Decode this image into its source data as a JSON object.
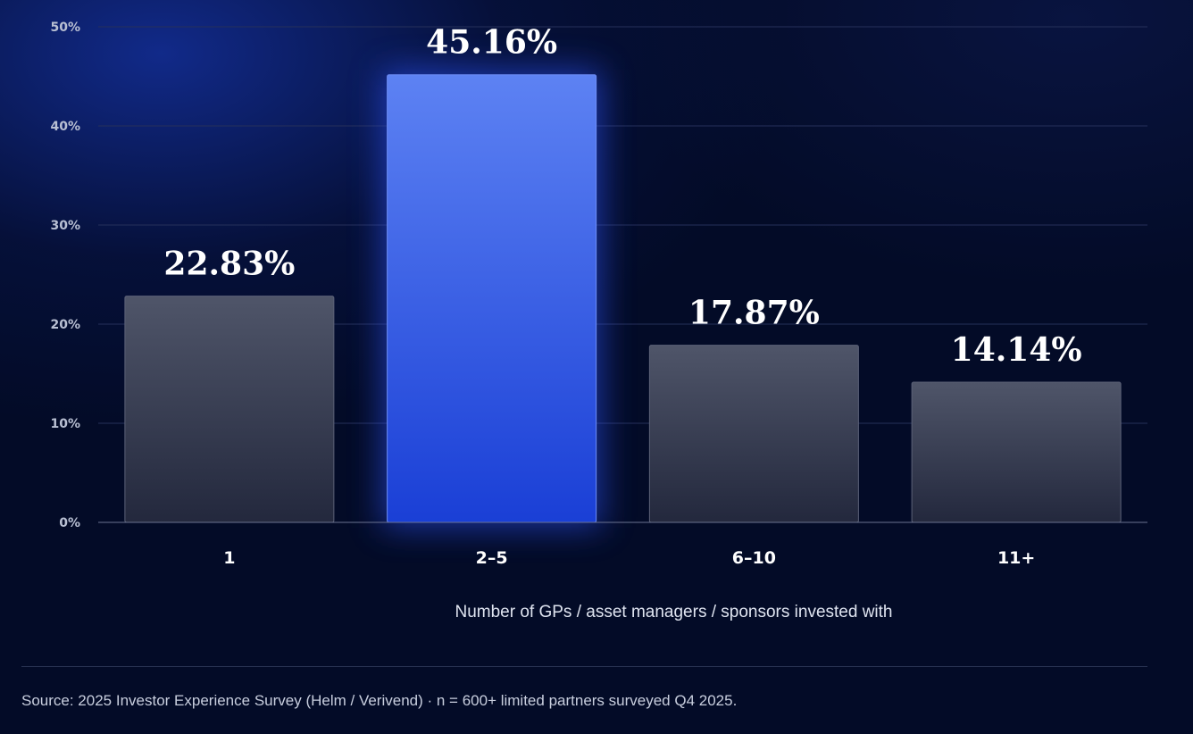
{
  "chart_data": {
    "type": "bar",
    "categories": [
      "1",
      "2–5",
      "6–10",
      "11+"
    ],
    "values": [
      22.83,
      45.16,
      17.87,
      14.14
    ],
    "value_labels": [
      "22.83%",
      "45.16%",
      "17.87%",
      "14.14%"
    ],
    "highlight_index": 1,
    "title": "",
    "xlabel": "Number of GPs / asset managers / sponsors invested with",
    "ylabel": "",
    "ylim": [
      0,
      50
    ],
    "y_ticks": [
      0,
      10,
      20,
      30,
      40,
      50
    ],
    "y_tick_labels": [
      "0%",
      "10%",
      "20%",
      "30%",
      "40%",
      "50%"
    ],
    "grid": true,
    "legend": "none",
    "colors": {
      "bar_default_top": "#4f5569",
      "bar_default_bottom": "#23283d",
      "bar_highlight_top": "#5d82f3",
      "bar_highlight_bottom": "#1a3fd6",
      "glow": "#2d55ff"
    }
  },
  "footer": {
    "source": "Source: 2025 Investor Experience Survey (Helm / Verivend) · n = 600+ limited partners surveyed Q4 2025."
  }
}
